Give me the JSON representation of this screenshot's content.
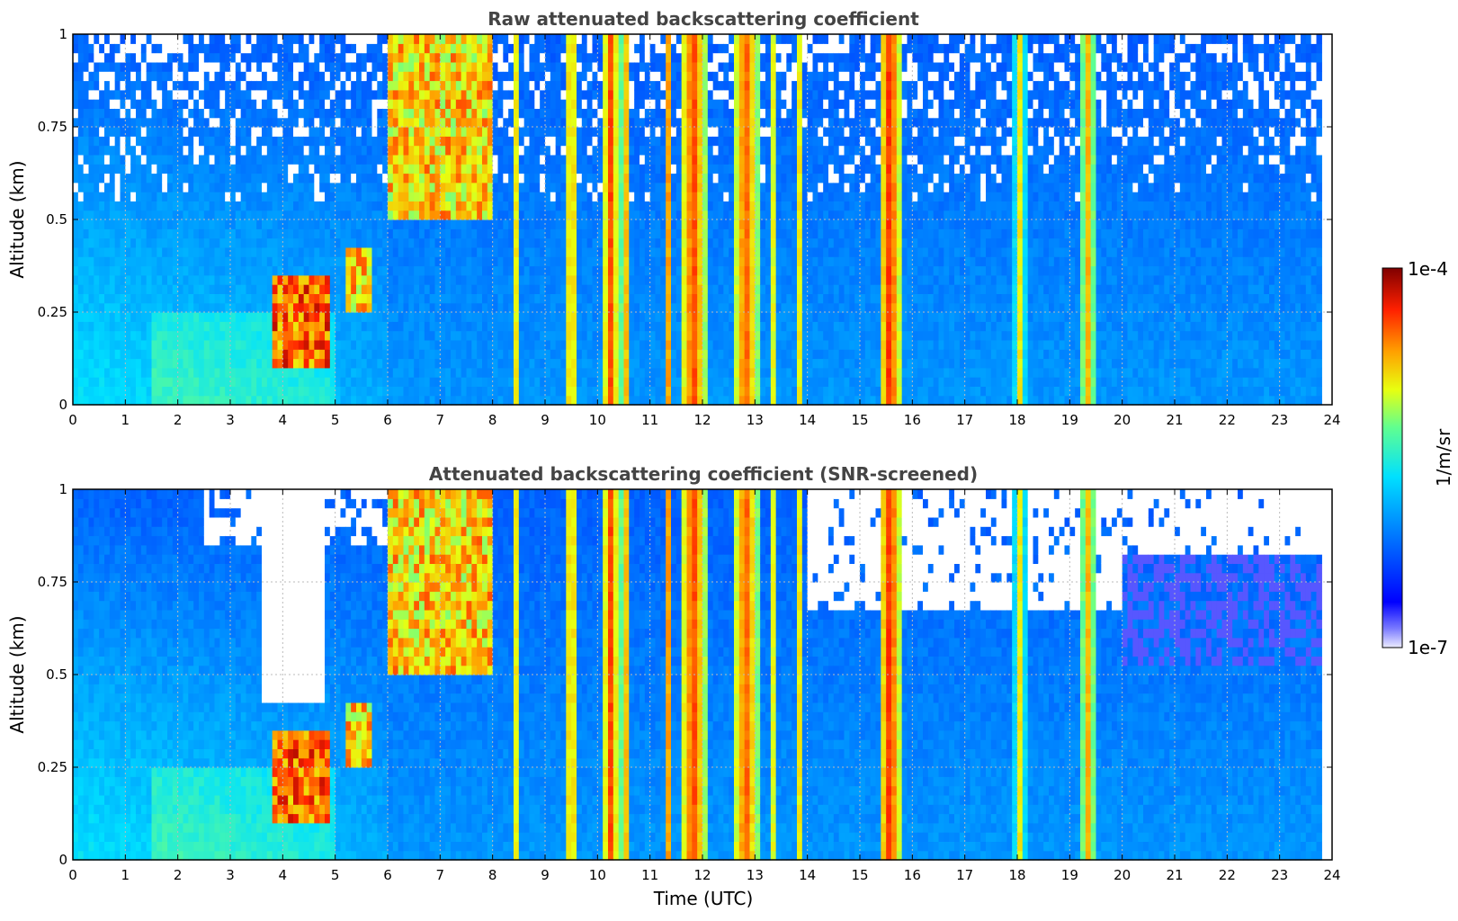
{
  "chart_data": [
    {
      "type": "heatmap",
      "title": "Raw attenuated backscattering coefficient",
      "xlabel": "",
      "ylabel": "Altitude (km)",
      "xlim": [
        0,
        24
      ],
      "ylim": [
        0,
        1
      ],
      "xticks": [
        "0",
        "1",
        "2",
        "3",
        "4",
        "5",
        "6",
        "7",
        "8",
        "9",
        "10",
        "11",
        "12",
        "13",
        "14",
        "15",
        "16",
        "17",
        "18",
        "19",
        "20",
        "21",
        "22",
        "23",
        "24"
      ],
      "yticks": [
        "0",
        "0.25",
        "0.5",
        "0.75",
        "1"
      ],
      "grid": true,
      "data_end_time": 23.8,
      "features": [
        {
          "label": "aerosol layer",
          "start": 3.8,
          "end": 4.9,
          "alt_low": 0.1,
          "alt_high": 0.35,
          "level": 0.95
        },
        {
          "label": "aerosol layer",
          "start": 5.2,
          "end": 5.7,
          "alt_low": 0.25,
          "alt_high": 0.42,
          "level": 0.85
        },
        {
          "label": "elevated layer",
          "start": 6.0,
          "end": 8.0,
          "alt_low": 0.5,
          "alt_high": 1.0,
          "level": 0.85
        }
      ],
      "columns": [
        {
          "start": 8.4,
          "end": 8.5,
          "level": 0.72
        },
        {
          "start": 9.4,
          "end": 9.6,
          "level": 0.85
        },
        {
          "start": 10.1,
          "end": 10.4,
          "level": 0.88
        },
        {
          "start": 10.45,
          "end": 10.6,
          "level": 0.85
        },
        {
          "start": 11.3,
          "end": 11.4,
          "level": 0.8
        },
        {
          "start": 11.6,
          "end": 12.05,
          "level": 0.9
        },
        {
          "start": 12.6,
          "end": 13.05,
          "level": 0.88
        },
        {
          "start": 13.3,
          "end": 13.4,
          "level": 0.7
        },
        {
          "start": 13.8,
          "end": 13.9,
          "level": 0.72
        },
        {
          "start": 15.4,
          "end": 15.75,
          "level": 0.93
        },
        {
          "start": 17.95,
          "end": 18.15,
          "level": 0.72
        },
        {
          "start": 19.2,
          "end": 19.5,
          "level": 0.78
        }
      ]
    },
    {
      "type": "heatmap",
      "title": "Attenuated backscattering coefficient (SNR-screened)",
      "xlabel": "Time (UTC)",
      "ylabel": "Altitude (km)",
      "xlim": [
        0,
        24
      ],
      "ylim": [
        0,
        1
      ],
      "xticks": [
        "0",
        "1",
        "2",
        "3",
        "4",
        "5",
        "6",
        "7",
        "8",
        "9",
        "10",
        "11",
        "12",
        "13",
        "14",
        "15",
        "16",
        "17",
        "18",
        "19",
        "20",
        "21",
        "22",
        "23",
        "24"
      ],
      "yticks": [
        "0",
        "0.25",
        "0.5",
        "0.75",
        "1"
      ],
      "grid": true,
      "screened": true
    }
  ],
  "colorbar": {
    "label": "1/m/sr",
    "max_label": "1e-4",
    "min_label": "1e-7",
    "colormap": "jet",
    "scale": "log"
  }
}
